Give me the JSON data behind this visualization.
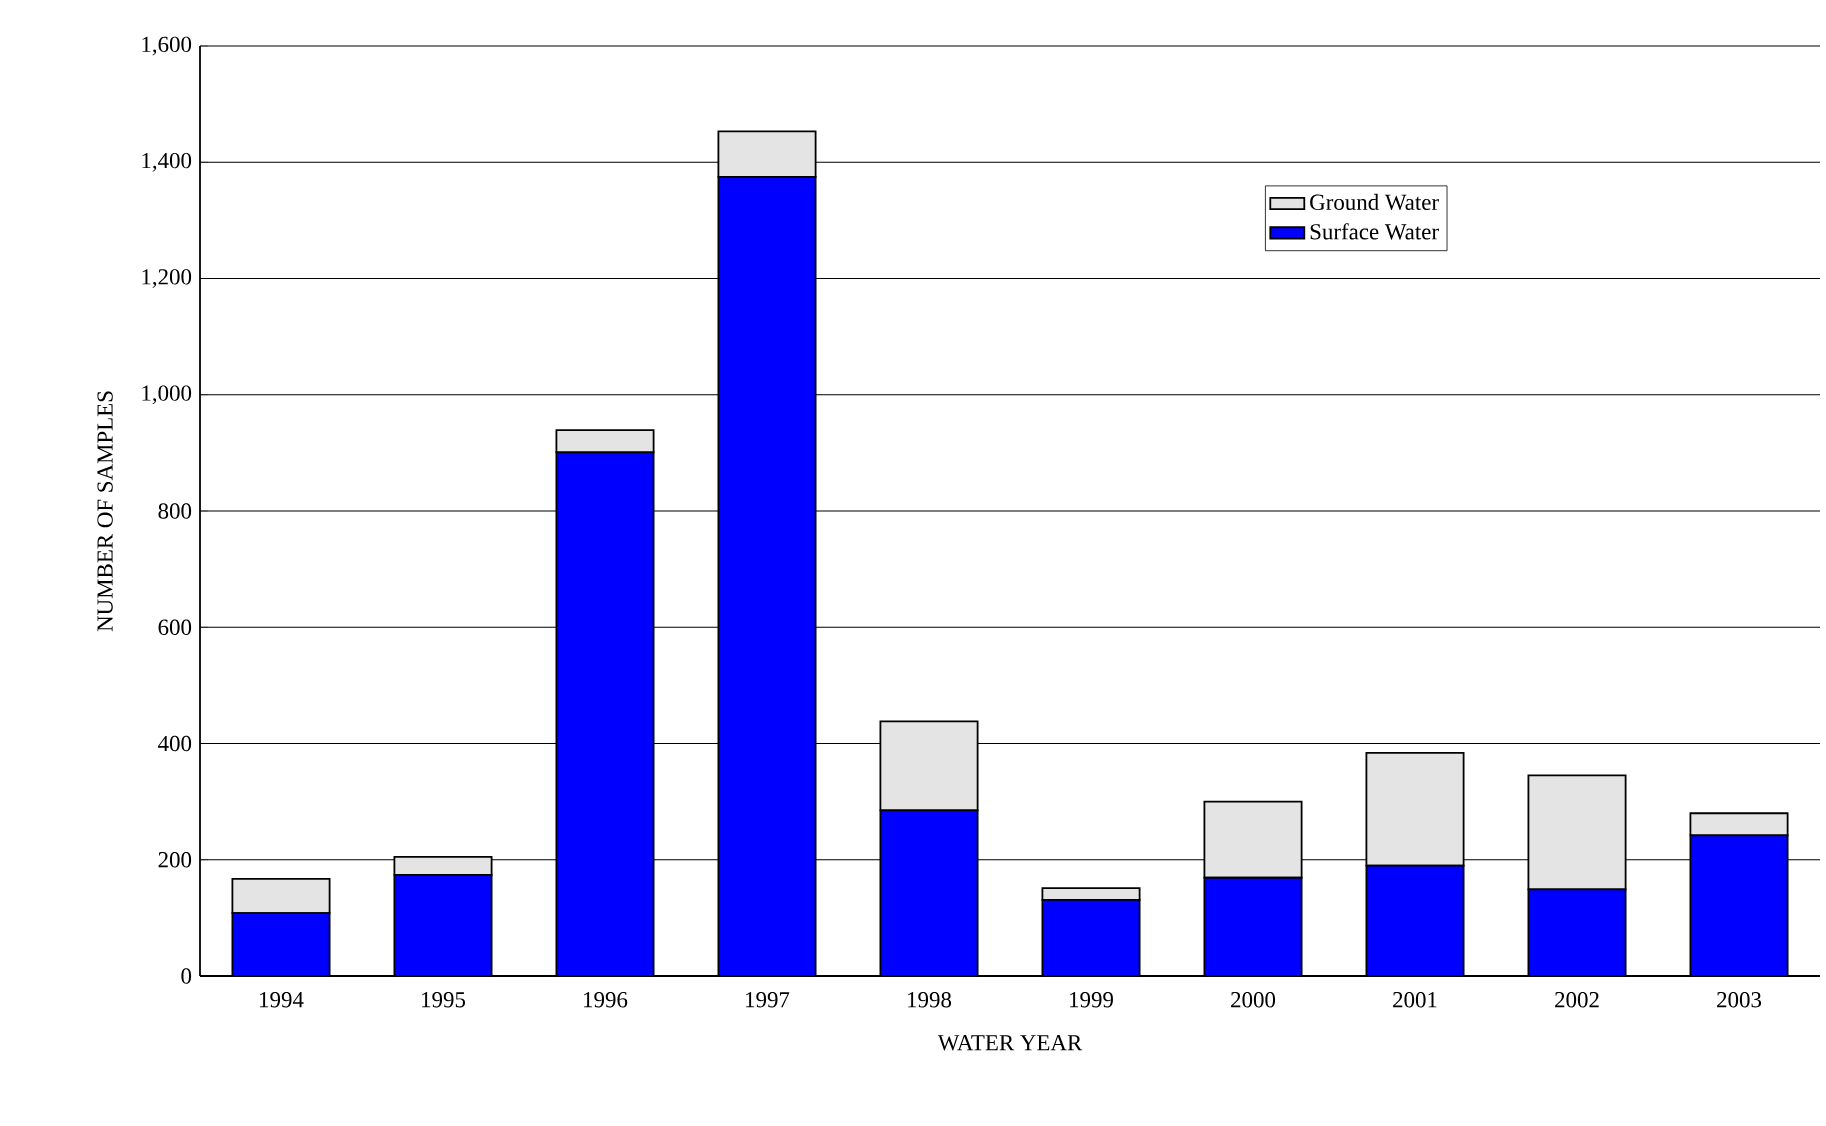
{
  "chart_data": {
    "type": "bar",
    "stacked": true,
    "xlabel": "WATER YEAR",
    "ylabel": "NUMBER OF SAMPLES",
    "categories": [
      "1994",
      "1995",
      "1996",
      "1997",
      "1998",
      "1999",
      "2000",
      "2001",
      "2002",
      "2003"
    ],
    "series": [
      {
        "name": "Surface Water",
        "color": "#0000ff",
        "values": [
          108,
          174,
          901,
          1375,
          285,
          131,
          169,
          190,
          149,
          242
        ]
      },
      {
        "name": "Ground Water",
        "color": "#e4e4e4",
        "values": [
          59,
          31,
          38,
          78,
          153,
          20,
          131,
          194,
          196,
          38
        ]
      }
    ],
    "ylim": [
      0,
      1600
    ],
    "yticks": [
      0,
      200,
      400,
      600,
      800,
      {
        "value": 1000,
        "label": "1,000"
      },
      {
        "value": 1200,
        "label": "1,200"
      },
      {
        "value": 1400,
        "label": "1,400"
      },
      {
        "value": 1600,
        "label": "1,600"
      }
    ],
    "grid": "y",
    "legend": "top right"
  }
}
